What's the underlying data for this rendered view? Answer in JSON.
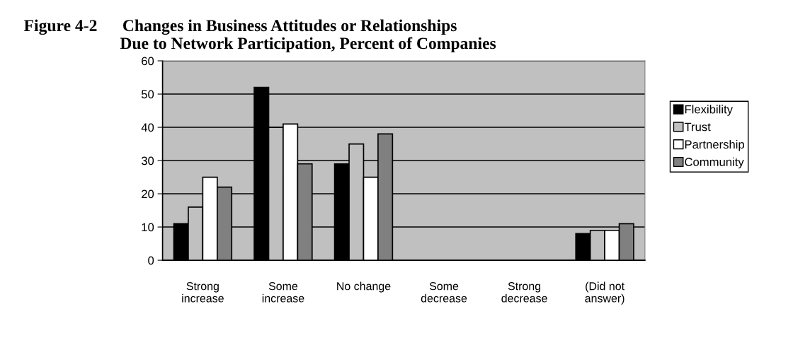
{
  "chart_data": {
    "type": "bar",
    "title": "Figure 4-2      Changes in Business Attitudes or Relationships\n                       Due to Network Participation, Percent of Companies",
    "categories": [
      "Strong\nincrease",
      "Some\nincrease",
      "No change",
      "Some\ndecrease",
      "Strong\ndecrease",
      "(Did not\nanswer)"
    ],
    "series": [
      {
        "name": "Flexibility",
        "color": "#000000",
        "values": [
          11,
          52,
          29,
          0,
          0,
          8
        ]
      },
      {
        "name": "Trust",
        "color": "#c0c0c0",
        "values": [
          16,
          40,
          35,
          0,
          0,
          9
        ]
      },
      {
        "name": "Partnership",
        "color": "#ffffff",
        "values": [
          25,
          41,
          25,
          0,
          0,
          9
        ]
      },
      {
        "name": "Community",
        "color": "#808080",
        "values": [
          22,
          29,
          38,
          0,
          0,
          11
        ]
      }
    ],
    "ylim": [
      0,
      60
    ],
    "yticks": [
      0,
      10,
      20,
      30,
      40,
      50,
      60
    ],
    "grid": "y",
    "legend": "right"
  }
}
